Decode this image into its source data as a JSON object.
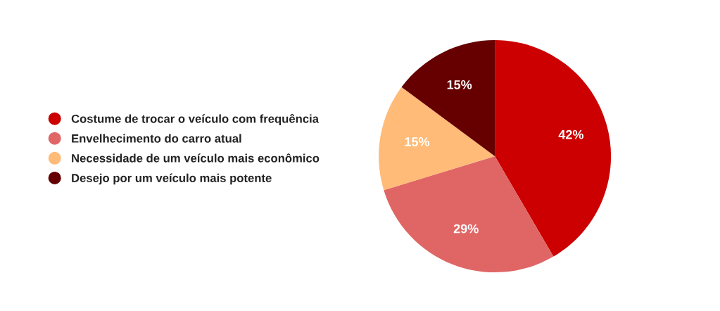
{
  "chart_data": {
    "type": "pie",
    "categories": [
      "Costume de trocar o veículo com frequência",
      "Envelhecimento do carro atual",
      "Necessidade de um veículo mais econômico",
      "Desejo por um veículo mais potente"
    ],
    "values": [
      42,
      29,
      15,
      15
    ],
    "colors": [
      "#cc0000",
      "#e06666",
      "#ffbb77",
      "#660000"
    ],
    "value_labels": [
      "42%",
      "29%",
      "15%",
      "15%"
    ],
    "legend": "left"
  }
}
